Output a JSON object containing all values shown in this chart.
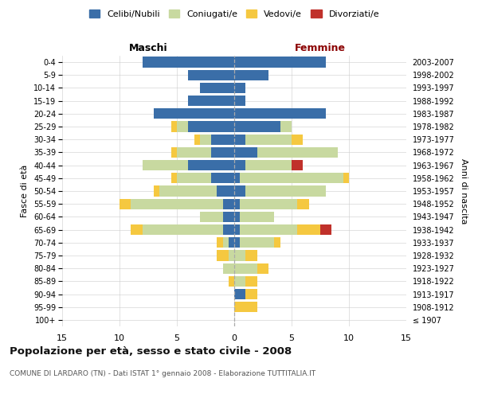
{
  "age_groups": [
    "100+",
    "95-99",
    "90-94",
    "85-89",
    "80-84",
    "75-79",
    "70-74",
    "65-69",
    "60-64",
    "55-59",
    "50-54",
    "45-49",
    "40-44",
    "35-39",
    "30-34",
    "25-29",
    "20-24",
    "15-19",
    "10-14",
    "5-9",
    "0-4"
  ],
  "birth_years": [
    "≤ 1907",
    "1908-1912",
    "1913-1917",
    "1918-1922",
    "1923-1927",
    "1928-1932",
    "1933-1937",
    "1938-1942",
    "1943-1947",
    "1948-1952",
    "1953-1957",
    "1958-1962",
    "1963-1967",
    "1968-1972",
    "1973-1977",
    "1978-1982",
    "1983-1987",
    "1988-1992",
    "1993-1997",
    "1998-2002",
    "2003-2007"
  ],
  "males": {
    "celibi": [
      0,
      0,
      0,
      0,
      0,
      0,
      0.5,
      1,
      1,
      1,
      1.5,
      2,
      4,
      2,
      2,
      4,
      7,
      4,
      3,
      4,
      8
    ],
    "coniugati": [
      0,
      0,
      0,
      0,
      1,
      0.5,
      0.5,
      7,
      2,
      8,
      5,
      3,
      4,
      3,
      1,
      1,
      0,
      0,
      0,
      0,
      0
    ],
    "vedovi": [
      0,
      0,
      0,
      0.5,
      0,
      1,
      0.5,
      1,
      0,
      1,
      0.5,
      0.5,
      0,
      0.5,
      0.5,
      0.5,
      0,
      0,
      0,
      0,
      0
    ],
    "divorziati": [
      0,
      0,
      0,
      0,
      0,
      0,
      0,
      0,
      0,
      0,
      0,
      0,
      0,
      0,
      0,
      0,
      0,
      0,
      0,
      0,
      0
    ]
  },
  "females": {
    "nubili": [
      0,
      0,
      1,
      0,
      0,
      0,
      0.5,
      0.5,
      0.5,
      0.5,
      1,
      0.5,
      1,
      2,
      1,
      4,
      8,
      1,
      1,
      3,
      8
    ],
    "coniugate": [
      0,
      0,
      0,
      1,
      2,
      1,
      3,
      5,
      3,
      5,
      7,
      9,
      4,
      7,
      4,
      1,
      0,
      0,
      0,
      0,
      0
    ],
    "vedove": [
      0,
      2,
      1,
      1,
      1,
      1,
      0.5,
      2,
      0,
      1,
      0,
      0.5,
      0,
      0,
      1,
      0,
      0,
      0,
      0,
      0,
      0
    ],
    "divorziate": [
      0,
      0,
      0,
      0,
      0,
      0,
      0,
      1,
      0,
      0,
      0,
      0,
      1,
      0,
      0,
      0,
      0,
      0,
      0,
      0,
      0
    ]
  },
  "colors": {
    "celibi": "#3a6ea8",
    "coniugati": "#c8d9a0",
    "vedovi": "#f5c840",
    "divorziati": "#c0312b"
  },
  "xlim": 15,
  "title": "Popolazione per età, sesso e stato civile - 2008",
  "subtitle": "COMUNE DI LARDARO (TN) - Dati ISTAT 1° gennaio 2008 - Elaborazione TUTTITALIA.IT",
  "xlabel_left": "Maschi",
  "xlabel_right": "Femmine",
  "ylabel_left": "Fasce di età",
  "ylabel_right": "Anni di nascita",
  "legend_labels": [
    "Celibi/Nubili",
    "Coniugati/e",
    "Vedovi/e",
    "Divorziati/e"
  ],
  "femmine_color": "#8b0000",
  "maschi_color": "#000000"
}
